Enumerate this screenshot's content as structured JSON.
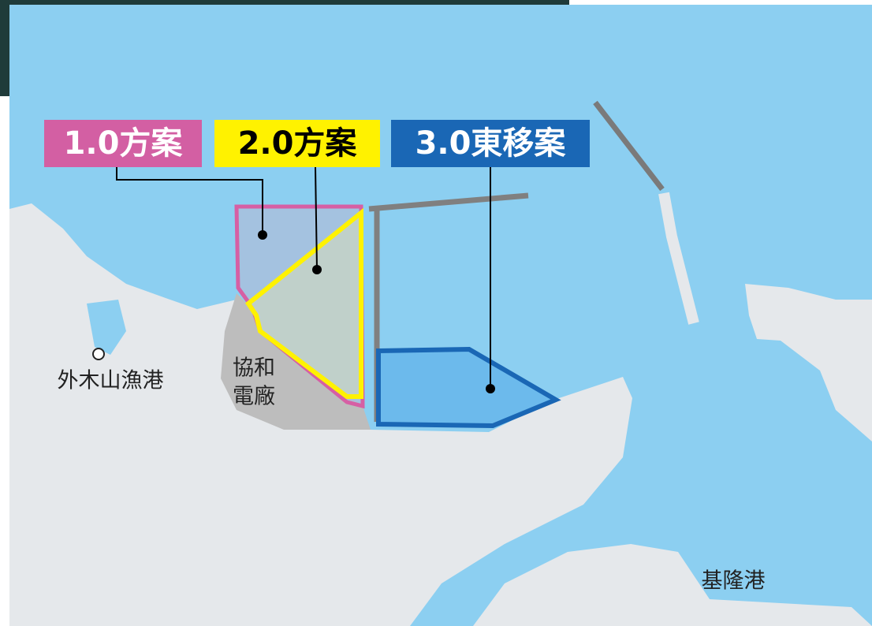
{
  "proposals": [
    {
      "label": "1.0方案"
    },
    {
      "label": "2.0方案"
    },
    {
      "label": "3.0東移案"
    }
  ],
  "places": [
    {
      "label": "外木山漁港"
    },
    {
      "lines": [
        "協和",
        "電廠"
      ]
    },
    {
      "label": "基隆港"
    }
  ]
}
